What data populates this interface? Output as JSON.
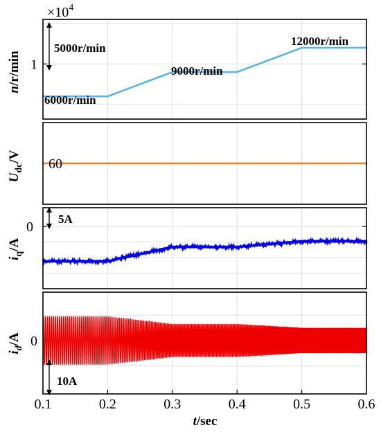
{
  "colors": {
    "speed": "#56B4E9",
    "udc": "#EE7F2D",
    "iq": "#0000EE",
    "id": "#EE0000",
    "grid": "#dddddd",
    "frame": "#000000"
  },
  "x_axis": {
    "label_var": "t",
    "label_unit": "/sec",
    "ticks": [
      "0.1",
      "0.2",
      "0.3",
      "0.4",
      "0.5",
      "0.6"
    ]
  },
  "chart_data": [
    {
      "type": "line",
      "title": "",
      "ylabel_var": "n",
      "ylabel_unit": "/r/min",
      "y_exponent_label": "×10",
      "y_exponent_power": "4",
      "ytick_label": "1",
      "ytick_value": 10000,
      "ylim": [
        3200,
        15500
      ],
      "xlim": [
        0.1,
        0.6
      ],
      "grid": true,
      "series": [
        {
          "x": [
            0.1,
            0.2,
            0.3,
            0.4,
            0.5,
            0.6
          ],
          "y": [
            6000,
            6000,
            9000,
            9000,
            12000,
            12000
          ]
        }
      ],
      "annotations": [
        {
          "text": "5000r/min"
        },
        {
          "text": "6000r/min"
        },
        {
          "text": "9000r/min"
        },
        {
          "text": "12000r/min"
        }
      ]
    },
    {
      "type": "line",
      "ylabel_var": "U",
      "ylabel_sub": "dc",
      "ylabel_unit": "/V",
      "ytick_label": "60",
      "ytick_value": 60,
      "ylim": [
        30,
        90
      ],
      "xlim": [
        0.1,
        0.6
      ],
      "grid": true,
      "series": [
        {
          "x": [
            0.1,
            0.6
          ],
          "y": [
            60,
            60
          ]
        }
      ]
    },
    {
      "type": "line",
      "ylabel_var": "i",
      "ylabel_sub": "q",
      "ylabel_unit": "/A",
      "ytick_label": "0",
      "ytick_value": 0,
      "ylim": [
        -20,
        6
      ],
      "xlim": [
        0.1,
        0.6
      ],
      "grid": true,
      "series": [
        {
          "x": [
            0.1,
            0.2,
            0.3,
            0.4,
            0.5,
            0.6
          ],
          "y": [
            -11.2,
            -11.2,
            -6.6,
            -6.6,
            -4.8,
            -4.8
          ]
        }
      ],
      "annotations": [
        {
          "text": "5A"
        }
      ]
    },
    {
      "type": "line",
      "ylabel_var": "i",
      "ylabel_sub": "d",
      "ylabel_unit": "/A",
      "ytick_label": "0",
      "ytick_value": 0,
      "ylim": [
        -21,
        19
      ],
      "xlim": [
        0.1,
        0.6
      ],
      "grid": true,
      "series": [
        {
          "description_points": "sinusoidal current envelope",
          "x": [
            0.1,
            0.2,
            0.3,
            0.4,
            0.5,
            0.6
          ],
          "amplitude": [
            9.5,
            9.5,
            6.5,
            6.5,
            5.0,
            5.0
          ],
          "frequency_hz": [
            100,
            100,
            150,
            150,
            200,
            200
          ]
        }
      ],
      "annotations": [
        {
          "text": "10A"
        }
      ]
    }
  ]
}
